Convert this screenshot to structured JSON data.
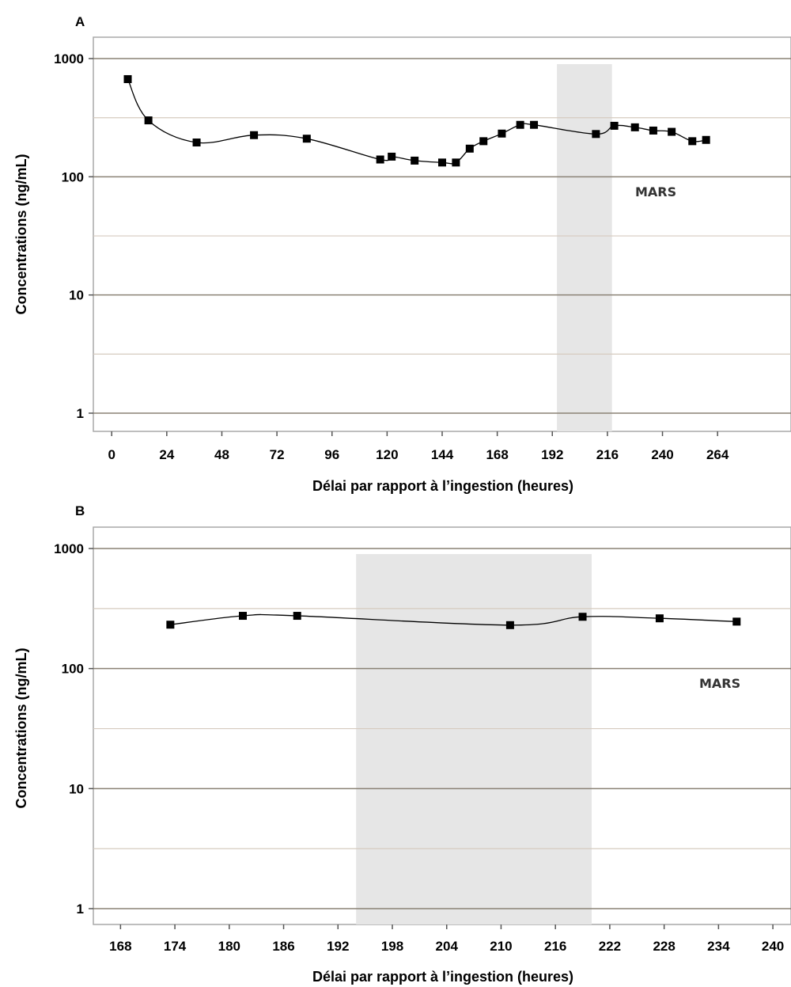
{
  "chart_data": [
    {
      "type": "line",
      "panel_label": "A",
      "xlabel": "Délai par rapport à l’ingestion (heures)",
      "ylabel": "Concentrations (ng/mL)",
      "y_scale": "log",
      "ylim": [
        1,
        1000
      ],
      "y_ticks": [
        "1",
        "10",
        "100",
        "1000"
      ],
      "xlim": [
        -8,
        296
      ],
      "x_ticks": [
        0,
        24,
        48,
        72,
        96,
        120,
        144,
        168,
        192,
        216,
        240,
        264
      ],
      "shaded_region": {
        "x0": 194,
        "x1": 218,
        "label": "MARS"
      },
      "grid": "horizontal",
      "x": [
        7,
        16,
        37,
        62,
        85,
        117,
        122,
        132,
        144,
        150,
        156,
        162,
        170,
        178,
        184,
        211,
        219,
        228,
        236,
        244,
        253,
        259
      ],
      "y": [
        670,
        300,
        195,
        225,
        210,
        140,
        148,
        137,
        132,
        132,
        173,
        200,
        232,
        275,
        275,
        230,
        270,
        262,
        246,
        240,
        200,
        205
      ]
    },
    {
      "type": "line",
      "panel_label": "B",
      "xlabel": "Délai par rapport à l’ingestion (heures)",
      "ylabel": "Concentrations (ng/mL)",
      "y_scale": "log",
      "ylim": [
        1,
        1000
      ],
      "y_ticks": [
        "1",
        "10",
        "100",
        "1000"
      ],
      "xlim": [
        165,
        242
      ],
      "x_ticks": [
        168,
        174,
        180,
        186,
        192,
        198,
        204,
        210,
        216,
        222,
        228,
        234,
        240
      ],
      "shaded_region": {
        "x0": 194,
        "x1": 220,
        "label": "MARS"
      },
      "grid": "horizontal",
      "x": [
        173.5,
        181.5,
        187.5,
        211,
        219,
        227.5,
        236
      ],
      "y": [
        232,
        275,
        275,
        230,
        270,
        262,
        246
      ]
    }
  ]
}
